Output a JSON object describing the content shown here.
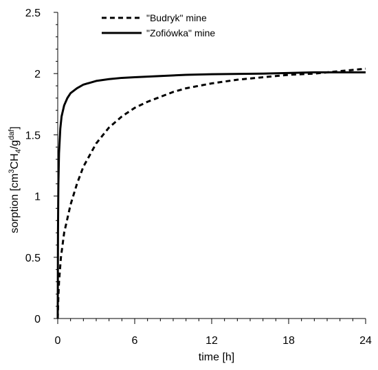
{
  "chart_data": {
    "type": "line",
    "xlabel": "time [h]",
    "ylabel": {
      "prefix": "sorption [cm",
      "sup1": "3",
      "mid": "CH",
      "sub": "4",
      "slash": "/g",
      "sup2": "daf",
      "suffix": "]"
    },
    "xlim": [
      0,
      24
    ],
    "ylim": [
      0,
      2.5
    ],
    "x_ticks": [
      0,
      6,
      12,
      18,
      24
    ],
    "x_tick_labels": [
      "0",
      "6",
      "12",
      "18",
      "24"
    ],
    "y_ticks": [
      0,
      0.5,
      1,
      1.5,
      2,
      2.5
    ],
    "y_tick_labels": [
      "0",
      "0.5",
      "1",
      "1.5",
      "2",
      "2.5"
    ],
    "legend_position": "top-left",
    "grid": false,
    "series": [
      {
        "name": "\"Budryk\" mine",
        "style": "dashed",
        "color": "#000000",
        "points": [
          [
            0,
            0
          ],
          [
            0.05,
            0.18
          ],
          [
            0.1,
            0.3
          ],
          [
            0.25,
            0.5
          ],
          [
            0.5,
            0.7
          ],
          [
            1,
            0.93
          ],
          [
            1.5,
            1.1
          ],
          [
            2,
            1.24
          ],
          [
            3,
            1.43
          ],
          [
            4,
            1.56
          ],
          [
            5,
            1.65
          ],
          [
            6,
            1.72
          ],
          [
            7,
            1.77
          ],
          [
            8,
            1.81
          ],
          [
            9,
            1.85
          ],
          [
            10,
            1.88
          ],
          [
            11,
            1.9
          ],
          [
            12,
            1.92
          ],
          [
            14,
            1.95
          ],
          [
            16,
            1.97
          ],
          [
            18,
            1.99
          ],
          [
            20,
            2.0
          ],
          [
            22,
            2.02
          ],
          [
            24,
            2.04
          ]
        ]
      },
      {
        "name": "\"Zofiówka\" mine",
        "style": "solid",
        "color": "#000000",
        "points": [
          [
            0,
            0
          ],
          [
            0.02,
            0.7
          ],
          [
            0.05,
            1.1
          ],
          [
            0.1,
            1.35
          ],
          [
            0.2,
            1.55
          ],
          [
            0.3,
            1.65
          ],
          [
            0.5,
            1.74
          ],
          [
            0.75,
            1.8
          ],
          [
            1,
            1.84
          ],
          [
            1.5,
            1.88
          ],
          [
            2,
            1.91
          ],
          [
            3,
            1.94
          ],
          [
            4,
            1.955
          ],
          [
            5,
            1.965
          ],
          [
            6,
            1.97
          ],
          [
            8,
            1.98
          ],
          [
            10,
            1.99
          ],
          [
            12,
            1.995
          ],
          [
            16,
            2.0
          ],
          [
            20,
            2.01
          ],
          [
            24,
            2.01
          ]
        ]
      }
    ]
  }
}
